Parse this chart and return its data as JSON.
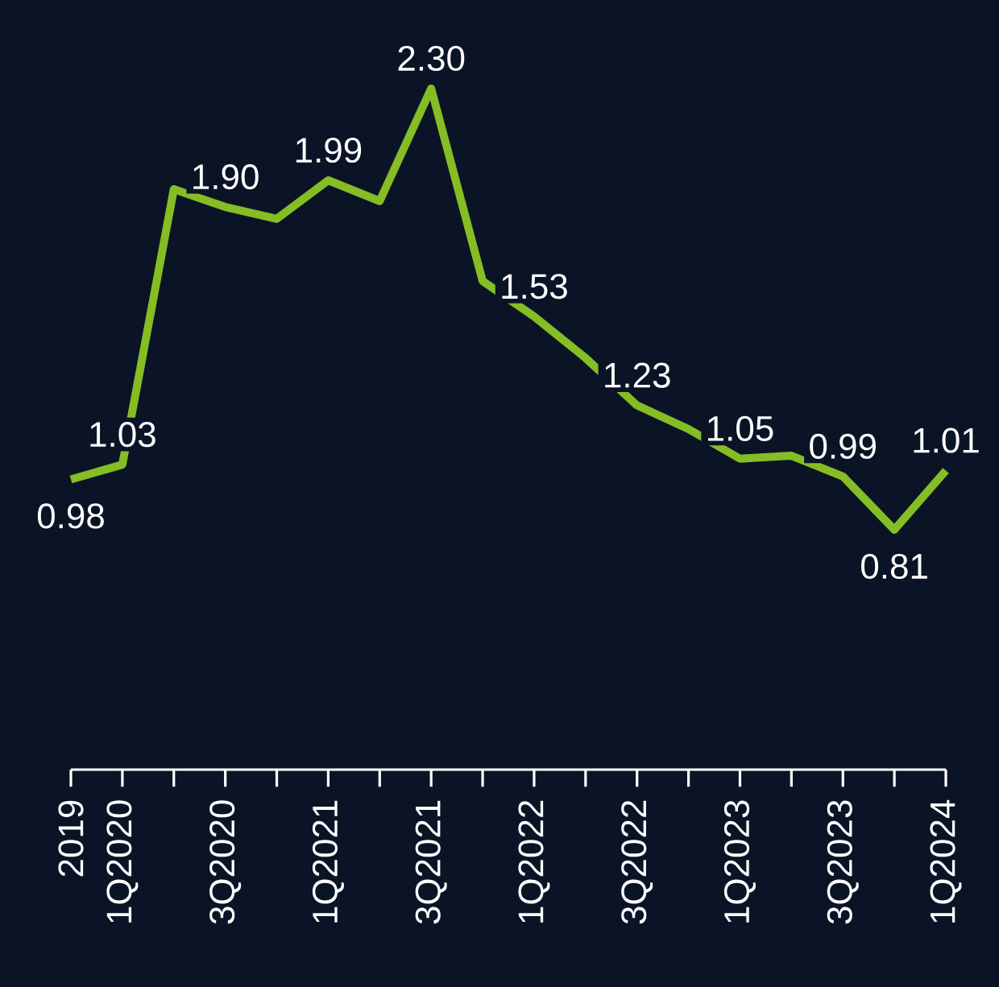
{
  "chart_data": {
    "type": "line",
    "categories": [
      "2019",
      "1Q2020",
      null,
      "3Q2020",
      null,
      "1Q2021",
      null,
      "3Q2021",
      null,
      "1Q2022",
      null,
      "3Q2022",
      null,
      "1Q2023",
      null,
      "3Q2023",
      null,
      "1Q2024"
    ],
    "values": [
      0.98,
      1.03,
      1.96,
      1.9,
      1.86,
      1.99,
      1.92,
      2.3,
      1.65,
      1.53,
      1.39,
      1.23,
      1.15,
      1.05,
      1.06,
      0.99,
      0.81,
      1.01
    ],
    "value_labels": [
      "0.98",
      "1.03",
      null,
      "1.90",
      null,
      "1.99",
      null,
      "2.30",
      null,
      "1.53",
      null,
      "1.23",
      null,
      "1.05",
      null,
      "0.99",
      "0.81",
      "1.01"
    ],
    "color": "#84bd24"
  }
}
